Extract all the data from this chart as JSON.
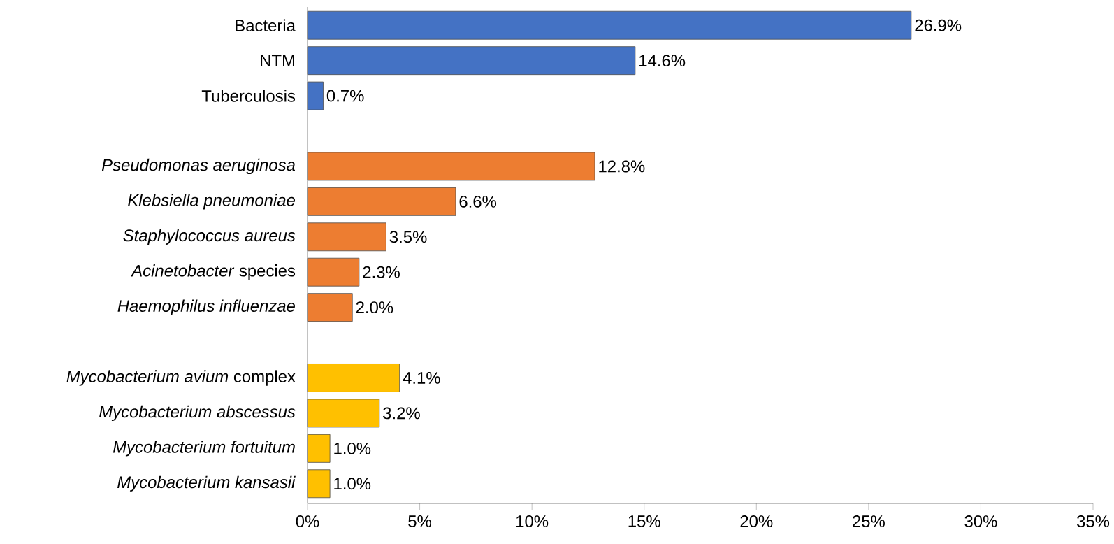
{
  "chart_data": {
    "type": "bar",
    "orientation": "horizontal",
    "categories": [
      "Bacteria",
      "NTM",
      "Tuberculosis",
      null,
      "*Pseudomonas aeruginosa*",
      "*Klebsiella pneumoniae*",
      "*Staphylococcus aureus*",
      "*Acinetobacter* species",
      "*Haemophilus influenzae*",
      null,
      "*Mycobacterium avium* complex",
      "*Mycobacterium abscessus*",
      "*Mycobacterium fortuitum*",
      "*Mycobacterium kansasii*"
    ],
    "values": [
      26.9,
      14.6,
      0.7,
      null,
      12.8,
      6.6,
      3.5,
      2.3,
      2.0,
      null,
      4.1,
      3.2,
      1.0,
      1.0
    ],
    "value_labels": [
      "26.9%",
      "14.6%",
      "0.7%",
      null,
      "12.8%",
      "6.6%",
      "3.5%",
      "2.3%",
      "2.0%",
      null,
      "4.1%",
      "3.2%",
      "1.0%",
      "1.0%"
    ],
    "colors": [
      "#4472c4",
      "#4472c4",
      "#4472c4",
      null,
      "#ed7d31",
      "#ed7d31",
      "#ed7d31",
      "#ed7d31",
      "#ed7d31",
      null,
      "#ffc000",
      "#ffc000",
      "#ffc000",
      "#ffc000"
    ],
    "xlim": [
      0,
      35
    ],
    "xticks": [
      {
        "value": 0,
        "label": "0%"
      },
      {
        "value": 5,
        "label": "5%"
      },
      {
        "value": 10,
        "label": "10%"
      },
      {
        "value": 15,
        "label": "15%"
      },
      {
        "value": 20,
        "label": "20%"
      },
      {
        "value": 25,
        "label": "25%"
      },
      {
        "value": 30,
        "label": "30%"
      },
      {
        "value": 35,
        "label": "35%"
      }
    ]
  }
}
